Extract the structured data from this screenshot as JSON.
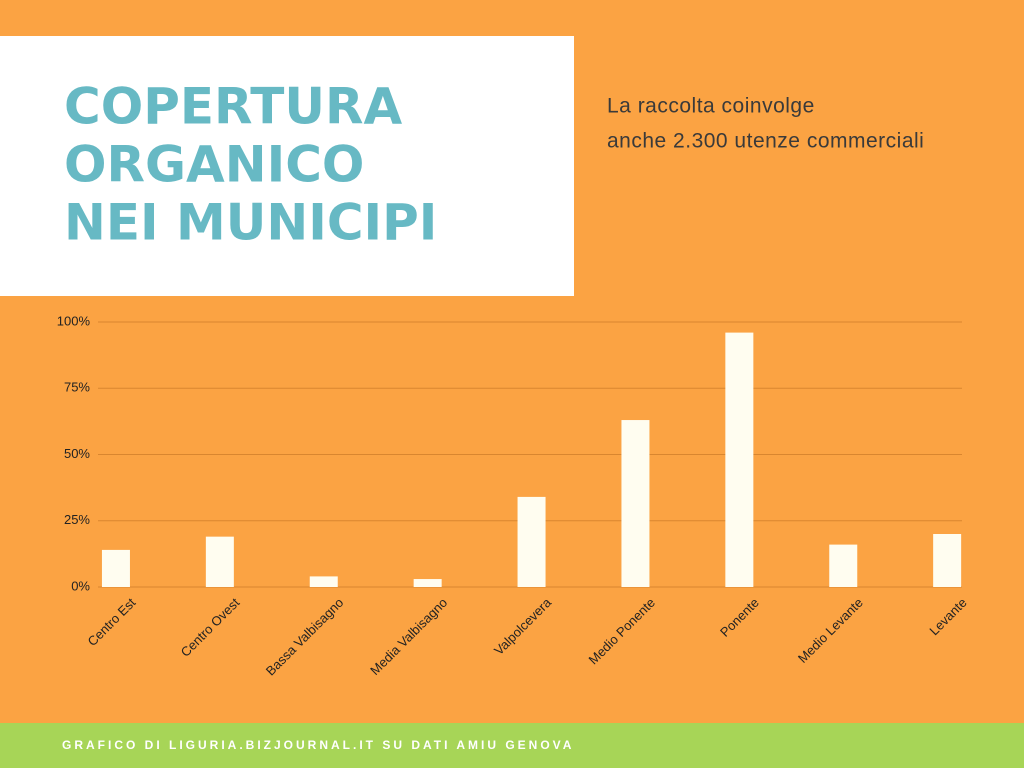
{
  "chart_data": {
    "type": "bar",
    "title_lines": [
      "COPERTURA",
      "ORGANICO",
      "NEI MUNICIPI"
    ],
    "subtitle_lines": [
      "La raccolta coinvolge",
      "anche 2.300 utenze commerciali"
    ],
    "categories": [
      "Centro Est",
      "Centro Ovest",
      "Bassa Valbisagno",
      "Media Valbisagno",
      "Valpolcevera",
      "Medio Ponente",
      "Ponente",
      "Medio Levante",
      "Levante"
    ],
    "values": [
      14,
      19,
      4,
      3,
      34,
      63,
      96,
      16,
      20
    ],
    "color": "#fffdf0",
    "ylim": [
      0,
      100
    ],
    "yticks": [
      {
        "value": 0,
        "label": "0%"
      },
      {
        "value": 25,
        "label": "25%"
      },
      {
        "value": 50,
        "label": "50%"
      },
      {
        "value": 75,
        "label": "75%"
      },
      {
        "value": 100,
        "label": "100%"
      }
    ],
    "grid": true,
    "footer": "GRAFICO DI LIGURIA.BIZJOURNAL.IT SU DATI AMIU GENOVA"
  }
}
